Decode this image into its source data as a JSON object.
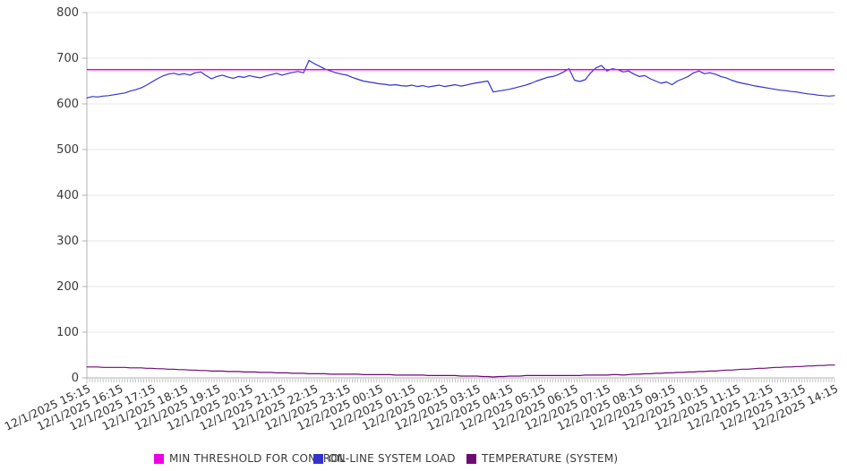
{
  "chart_data": {
    "type": "line",
    "title": "",
    "xlabel": "",
    "ylabel": "",
    "ylim": [
      0,
      800
    ],
    "yticks": [
      0,
      100,
      200,
      300,
      400,
      500,
      600,
      700,
      800
    ],
    "grid": "horizontal",
    "legend_position": "bottom",
    "background_color": "#ffffff",
    "gridline_color": "#e7e7e7",
    "axis_color": "#b0b0b0",
    "tick_color": "#c4c4c4",
    "label_color": "#3a3a3a",
    "x_minor_ticks": 277,
    "x_categories": [
      "12/1/2025 15:15",
      "12/1/2025 16:15",
      "12/1/2025 17:15",
      "12/1/2025 18:15",
      "12/1/2025 19:15",
      "12/1/2025 20:15",
      "12/1/2025 21:15",
      "12/1/2025 22:15",
      "12/1/2025 23:15",
      "12/2/2025 00:15",
      "12/2/2025 01:15",
      "12/2/2025 02:15",
      "12/2/2025 03:15",
      "12/2/2025 04:15",
      "12/2/2025 05:15",
      "12/2/2025 06:15",
      "12/2/2025 07:15",
      "12/2/2025 08:15",
      "12/2/2025 09:15",
      "12/2/2025 10:15",
      "12/2/2025 11:15",
      "12/2/2025 12:15",
      "12/2/2025 13:15",
      "12/2/2025 14:15"
    ],
    "sample_interval_minutes": 10,
    "series": [
      {
        "name": "MIN THRESHOLD FOR CONTROL",
        "color": "#ee00e4",
        "kind": "hline",
        "value": 675
      },
      {
        "name": "ON-LINE SYSTEM LOAD",
        "color": "#3333cc",
        "kind": "line",
        "values": [
          613,
          616,
          615,
          617,
          618,
          620,
          622,
          624,
          628,
          631,
          635,
          641,
          648,
          655,
          661,
          665,
          667,
          664,
          666,
          663,
          668,
          670,
          662,
          655,
          660,
          663,
          659,
          656,
          660,
          658,
          662,
          659,
          657,
          661,
          664,
          667,
          663,
          666,
          669,
          671,
          668,
          695,
          688,
          682,
          676,
          672,
          668,
          665,
          663,
          658,
          654,
          650,
          648,
          646,
          644,
          643,
          641,
          642,
          640,
          639,
          641,
          638,
          640,
          637,
          639,
          641,
          638,
          640,
          642,
          639,
          641,
          644,
          646,
          648,
          650,
          626,
          628,
          630,
          632,
          635,
          638,
          641,
          645,
          650,
          654,
          658,
          660,
          664,
          670,
          677,
          652,
          649,
          653,
          668,
          679,
          684,
          672,
          677,
          675,
          670,
          672,
          665,
          660,
          662,
          655,
          650,
          645,
          648,
          642,
          650,
          655,
          660,
          668,
          672,
          666,
          668,
          665,
          660,
          657,
          652,
          648,
          645,
          643,
          640,
          638,
          636,
          634,
          632,
          630,
          629,
          627,
          626,
          624,
          622,
          621,
          619,
          618,
          617,
          618
        ]
      },
      {
        "name": "TEMPERATURE (SYSTEM)",
        "color": "#6e0a72",
        "kind": "line",
        "values": [
          24,
          24,
          24,
          23,
          23,
          23,
          23,
          23,
          22,
          22,
          22,
          21,
          21,
          20,
          20,
          19,
          19,
          18,
          18,
          17,
          17,
          16,
          16,
          15,
          15,
          15,
          14,
          14,
          14,
          13,
          13,
          13,
          12,
          12,
          12,
          11,
          11,
          11,
          10,
          10,
          10,
          9,
          9,
          9,
          9,
          8,
          8,
          8,
          8,
          8,
          8,
          7,
          7,
          7,
          7,
          7,
          7,
          6,
          6,
          6,
          6,
          6,
          6,
          5,
          5,
          5,
          5,
          5,
          5,
          4,
          4,
          4,
          4,
          3,
          3,
          2,
          3,
          3,
          4,
          4,
          4,
          5,
          5,
          5,
          5,
          5,
          5,
          5,
          5,
          5,
          5,
          5,
          6,
          6,
          6,
          6,
          6,
          7,
          7,
          6,
          7,
          8,
          8,
          9,
          9,
          10,
          10,
          11,
          11,
          12,
          12,
          13,
          13,
          14,
          14,
          15,
          15,
          16,
          17,
          17,
          18,
          19,
          19,
          20,
          21,
          21,
          22,
          23,
          23,
          24,
          24,
          25,
          25,
          26,
          26,
          27,
          27,
          28,
          28
        ]
      }
    ]
  }
}
